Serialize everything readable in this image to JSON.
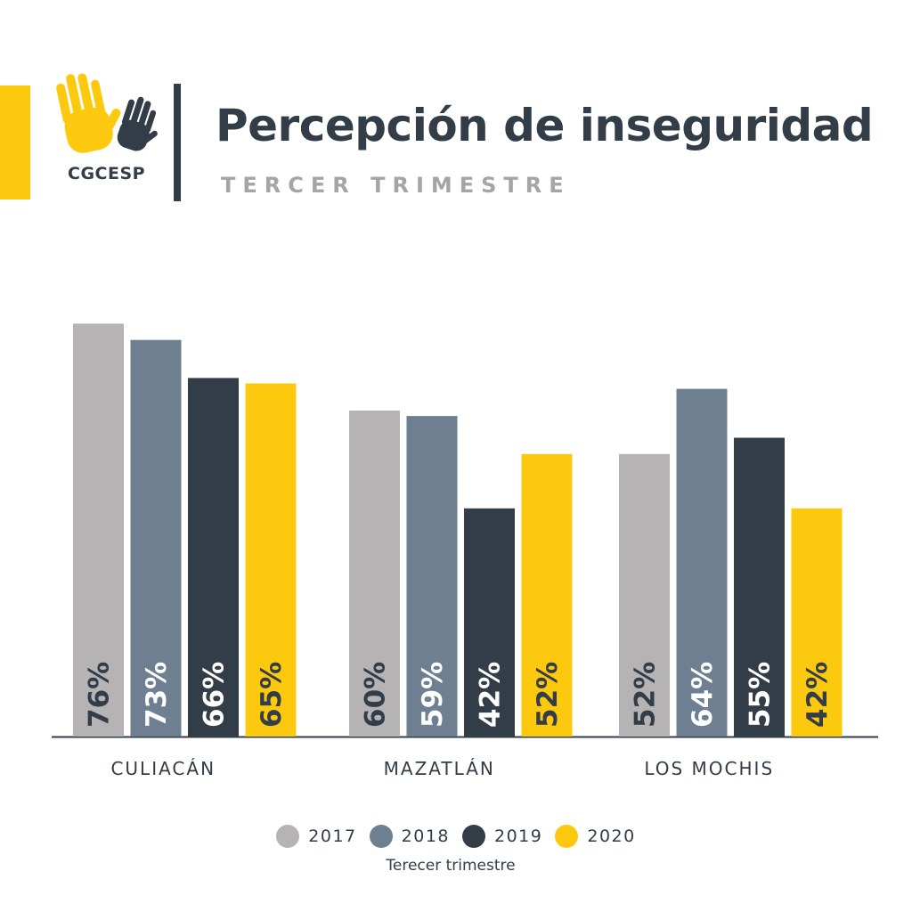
{
  "header": {
    "title": "Percepción de inseguridad",
    "subtitle": "TERCER TRIMESTRE",
    "logo_text_a": "CG",
    "logo_text_b": "CESP"
  },
  "colors": {
    "accent": "#fcc90f",
    "dark": "#333d48",
    "s2017": "#b5b3b4",
    "s2018": "#6d7f91",
    "s2019": "#333d48",
    "s2020": "#fcc90f"
  },
  "chart_data": {
    "type": "bar",
    "title": "Percepción de inseguridad",
    "subtitle": "TERCER TRIMESTRE",
    "categories": [
      "CULIACÁN",
      "MAZATLÁN",
      "LOS MOCHIS"
    ],
    "series": [
      {
        "name": "2017",
        "values": [
          76,
          60,
          52
        ],
        "labels": [
          "76%",
          "60%",
          "52%"
        ],
        "color": "#b5b3b4",
        "label_color": "#333d48"
      },
      {
        "name": "2018",
        "values": [
          73,
          59,
          64
        ],
        "labels": [
          "73%",
          "59%",
          "64%"
        ],
        "color": "#6d7f91",
        "label_color": "#ffffff"
      },
      {
        "name": "2019",
        "values": [
          66,
          42,
          55
        ],
        "labels": [
          "66%",
          "42%",
          "55%"
        ],
        "color": "#333d48",
        "label_color": "#ffffff"
      },
      {
        "name": "2020",
        "values": [
          65,
          52,
          42
        ],
        "labels": [
          "65%",
          "52%",
          "42%"
        ],
        "color": "#fcc90f",
        "label_color": "#333d48"
      }
    ],
    "ylim": [
      0,
      100
    ],
    "grid": false,
    "legend_position": "bottom",
    "note": "Terecer trimestre"
  }
}
